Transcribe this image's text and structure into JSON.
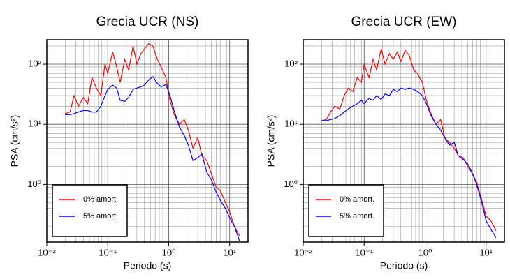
{
  "chart_data": [
    {
      "type": "line",
      "title": "Grecia UCR (NS)",
      "x_label": "Periodo (s)",
      "y_label": "PSA (cm/s²)",
      "xscale": "log",
      "yscale": "log",
      "grid": true,
      "minor_grid": true,
      "legend": "lower left",
      "xlim": [
        0.01,
        20
      ],
      "ylim": [
        0.11,
        255
      ],
      "xticks": [
        {
          "value": 0.01,
          "label": "10⁻²"
        },
        {
          "value": 0.1,
          "label": "10⁻¹"
        },
        {
          "value": 1,
          "label": "10⁰"
        },
        {
          "value": 10,
          "label": "10¹"
        }
      ],
      "yticks": [
        {
          "value": 1,
          "label": "10⁰"
        },
        {
          "value": 10,
          "label": "10¹"
        },
        {
          "value": 100,
          "label": "10²"
        }
      ],
      "x": [
        0.02,
        0.024,
        0.028,
        0.033,
        0.04,
        0.047,
        0.055,
        0.065,
        0.077,
        0.09,
        0.1,
        0.12,
        0.14,
        0.16,
        0.19,
        0.22,
        0.26,
        0.3,
        0.35,
        0.4,
        0.47,
        0.55,
        0.65,
        0.75,
        0.9,
        1.05,
        1.25,
        1.5,
        1.8,
        2.1,
        2.5,
        3,
        3.5,
        4.2,
        5,
        6,
        7,
        8.5,
        10,
        12,
        14.5
      ],
      "series": [
        {
          "name": "0% amort.",
          "color": "#ff0000",
          "values": [
            15,
            16,
            30,
            20,
            28,
            22,
            60,
            40,
            30,
            100,
            70,
            160,
            90,
            50,
            120,
            80,
            200,
            100,
            150,
            180,
            220,
            200,
            120,
            90,
            60,
            25,
            14,
            10,
            12,
            8,
            4,
            6,
            3,
            2.5,
            1.5,
            0.9,
            0.8,
            0.5,
            0.35,
            0.2,
            0.14
          ]
        },
        {
          "name": "5% amort.",
          "color": "#0000ff",
          "values": [
            14.5,
            14.5,
            15,
            16,
            17,
            17,
            16,
            16,
            20,
            30,
            38,
            45,
            40,
            25,
            24,
            28,
            38,
            40,
            42,
            45,
            55,
            62,
            48,
            42,
            46,
            30,
            16,
            9,
            6.5,
            4.5,
            2.5,
            2.8,
            3.2,
            1.6,
            1.2,
            0.75,
            0.55,
            0.4,
            0.28,
            0.2,
            0.115
          ]
        }
      ]
    },
    {
      "type": "line",
      "title": "Grecia UCR (EW)",
      "x_label": "Periodo (s)",
      "y_label": "PSA (cm/s²)",
      "xscale": "log",
      "yscale": "log",
      "grid": true,
      "minor_grid": true,
      "legend": "lower left",
      "xlim": [
        0.01,
        20
      ],
      "ylim": [
        0.11,
        255
      ],
      "xticks": [
        {
          "value": 0.01,
          "label": "10⁻²"
        },
        {
          "value": 0.1,
          "label": "10⁻¹"
        },
        {
          "value": 1,
          "label": "10⁰"
        },
        {
          "value": 10,
          "label": "10¹"
        }
      ],
      "yticks": [
        {
          "value": 1,
          "label": "10⁰"
        },
        {
          "value": 10,
          "label": "10¹"
        },
        {
          "value": 100,
          "label": "10²"
        }
      ],
      "x": [
        0.02,
        0.024,
        0.028,
        0.033,
        0.04,
        0.047,
        0.055,
        0.065,
        0.077,
        0.09,
        0.1,
        0.12,
        0.14,
        0.16,
        0.19,
        0.22,
        0.26,
        0.3,
        0.35,
        0.4,
        0.47,
        0.55,
        0.65,
        0.75,
        0.9,
        1.05,
        1.25,
        1.5,
        1.8,
        2.1,
        2.5,
        3,
        3.5,
        4.2,
        5,
        6,
        7,
        8.5,
        10,
        12,
        14.5
      ],
      "series": [
        {
          "name": "0% amort.",
          "color": "#ff0000",
          "values": [
            11.5,
            12,
            16,
            20,
            18,
            30,
            40,
            35,
            60,
            50,
            100,
            60,
            120,
            80,
            180,
            100,
            150,
            120,
            160,
            110,
            170,
            140,
            80,
            70,
            50,
            25,
            15,
            10,
            12,
            6,
            5,
            4,
            3,
            2.8,
            2,
            1.5,
            1.1,
            0.55,
            0.3,
            0.25,
            0.17
          ]
        },
        {
          "name": "5% amort.",
          "color": "#0000ff",
          "values": [
            11.5,
            11.5,
            12,
            12.5,
            14,
            16,
            18,
            20,
            22,
            25,
            22,
            27,
            25,
            30,
            26,
            32,
            30,
            38,
            35,
            40,
            38,
            40,
            38,
            35,
            30,
            22,
            14,
            10,
            8,
            6,
            4.5,
            5,
            3,
            2.6,
            2.2,
            1.5,
            1,
            0.5,
            0.25,
            0.18,
            0.13
          ]
        }
      ]
    }
  ]
}
